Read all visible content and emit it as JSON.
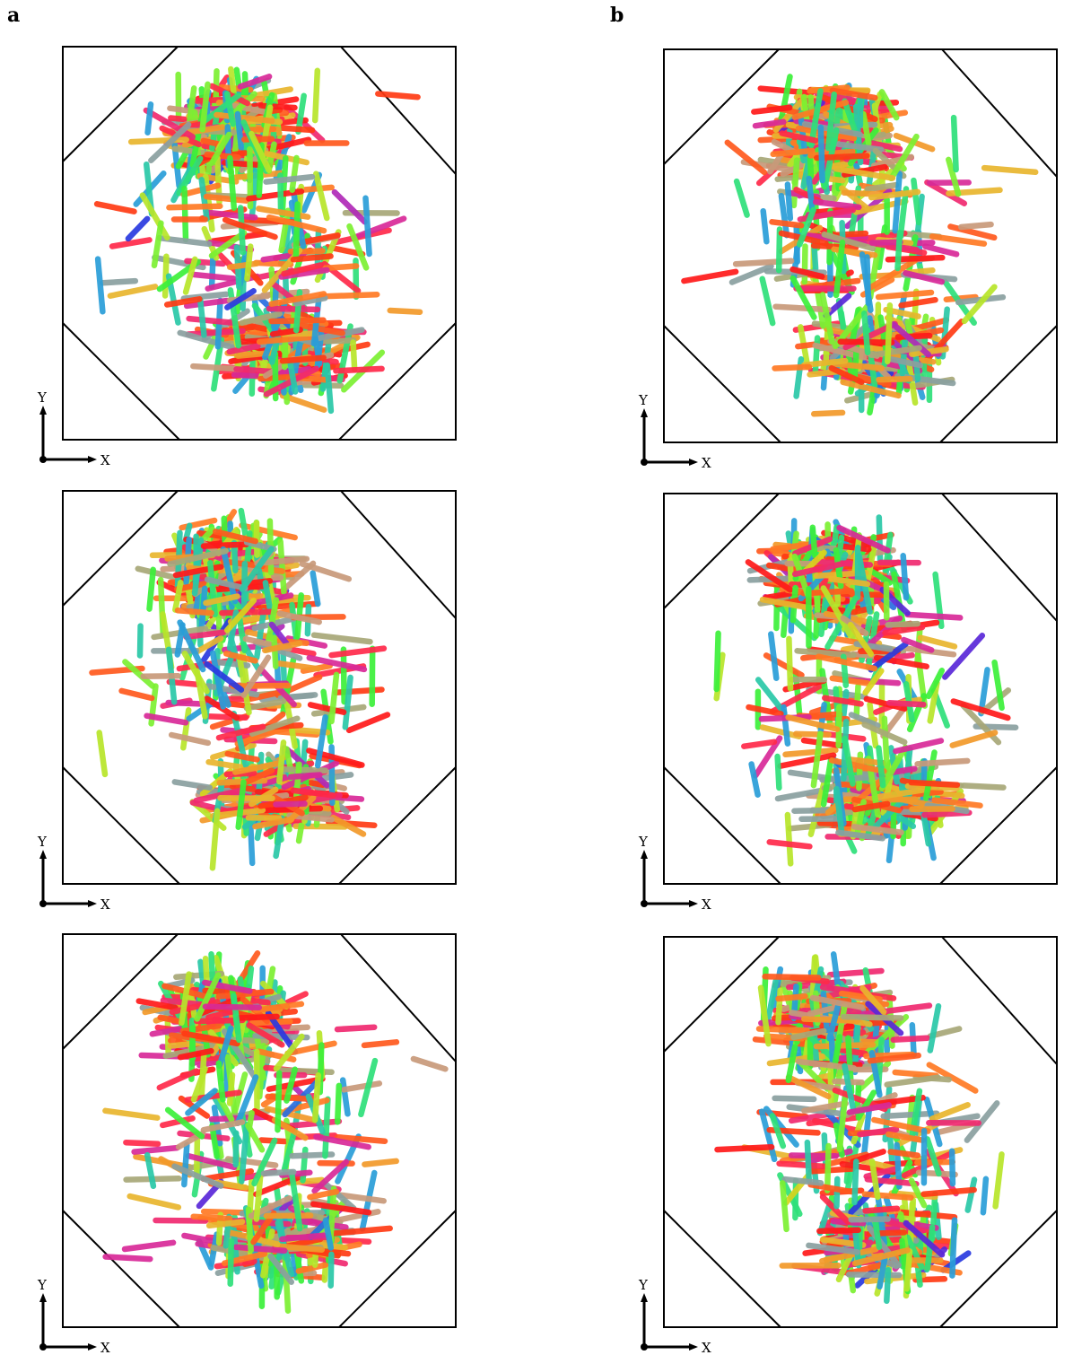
{
  "panels": [
    {
      "label": "a"
    },
    {
      "label": "b"
    }
  ],
  "axes": {
    "x_label": "X",
    "y_label": "Y"
  },
  "rod_palette": [
    "#ff1a1a",
    "#ff3b14",
    "#ff5a1e",
    "#ff7a24",
    "#f29a2a",
    "#e9b62e",
    "#d8d41e",
    "#b8e62a",
    "#7cf032",
    "#3cf03a",
    "#2ee07a",
    "#2ac8a8",
    "#2a9ed8",
    "#2a6ee0",
    "#2a3ae0",
    "#5a28d8",
    "#8a2ad0",
    "#b02ab8",
    "#d82a98",
    "#f02a70",
    "#ff2a4a",
    "#c89a7a",
    "#a8a878",
    "#8aa0a0"
  ]
}
